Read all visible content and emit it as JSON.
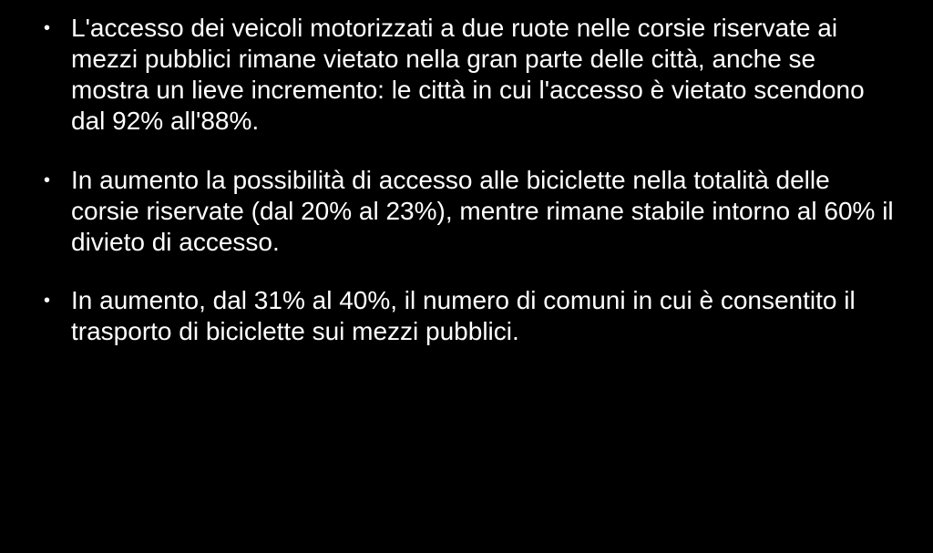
{
  "slide": {
    "background_color": "#000000",
    "text_color": "#ffffff",
    "font_family": "Arial",
    "font_size_pt": 21,
    "bullets": [
      "L'accesso dei veicoli motorizzati a due ruote nelle corsie riservate ai mezzi pubblici rimane vietato nella gran parte delle città, anche se mostra un lieve incremento: le città in cui l'accesso è vietato scendono dal 92% all'88%.",
      "In aumento la possibilità di accesso alle biciclette nella totalità delle corsie riservate (dal 20% al 23%), mentre rimane stabile intorno al 60% il divieto di accesso.",
      "In aumento, dal 31% al 40%, il numero di comuni in cui è consentito il trasporto di biciclette sui mezzi pubblici."
    ]
  }
}
